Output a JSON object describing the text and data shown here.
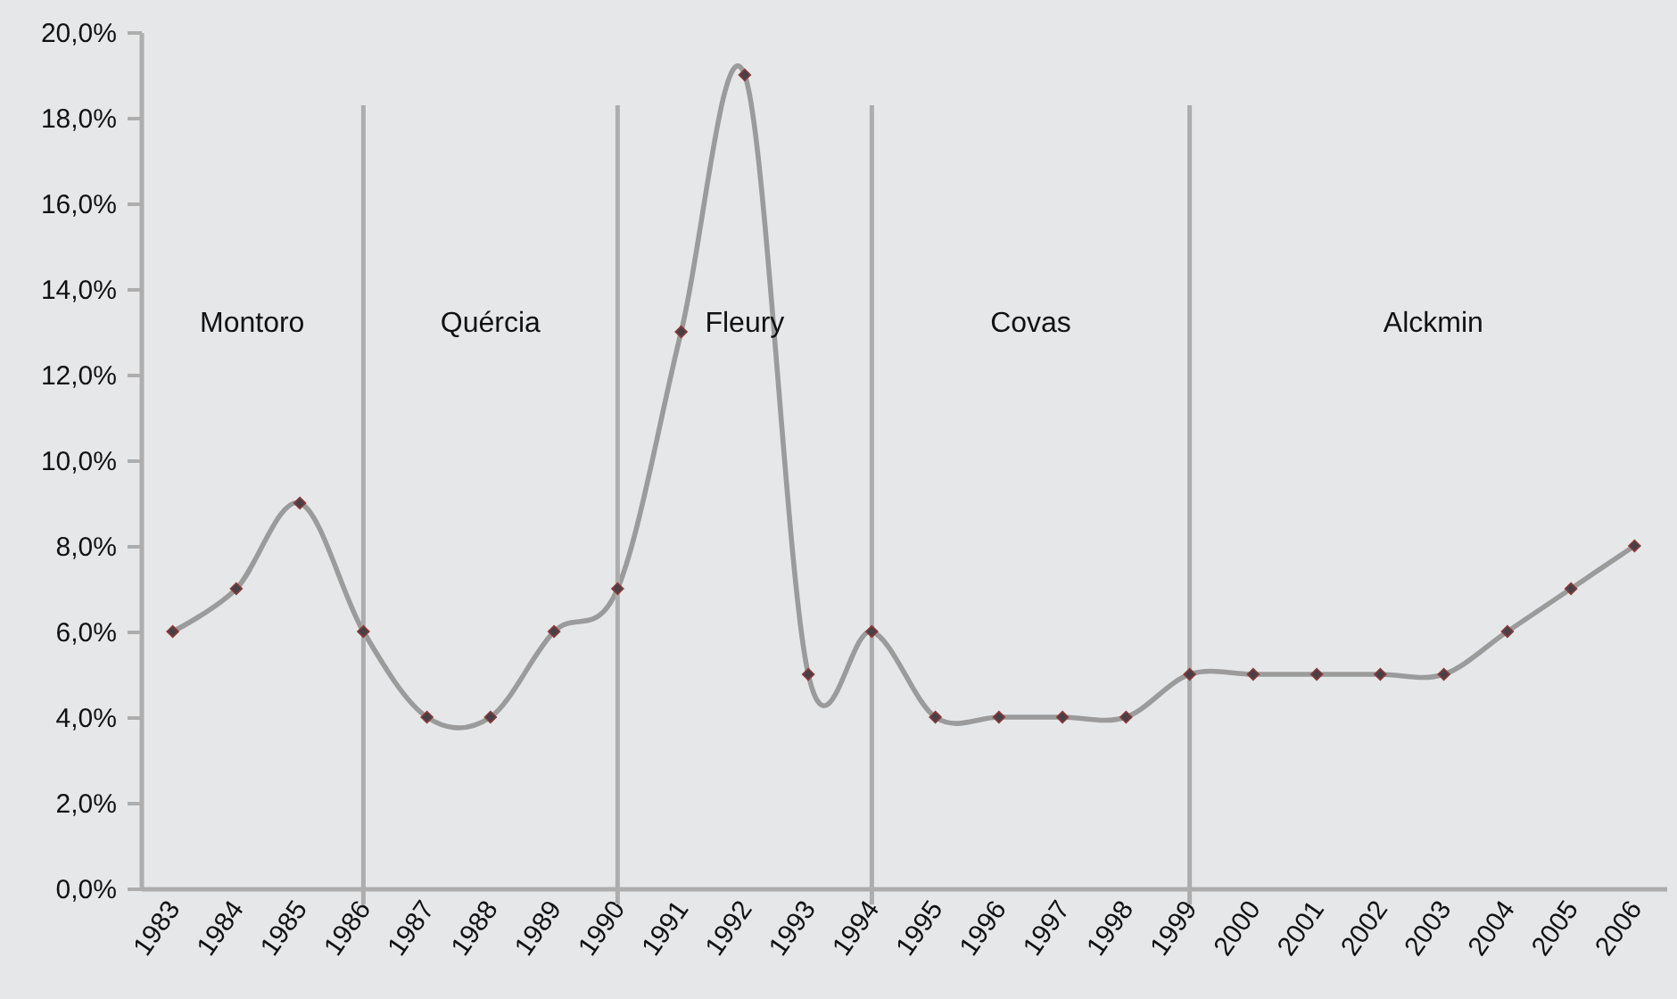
{
  "chart_data": {
    "type": "line",
    "categories": [
      "1983",
      "1984",
      "1985",
      "1986",
      "1987",
      "1988",
      "1989",
      "1990",
      "1991",
      "1992",
      "1993",
      "1994",
      "1995",
      "1996",
      "1997",
      "1998",
      "1999",
      "2000",
      "2001",
      "2002",
      "2003",
      "2004",
      "2005",
      "2006"
    ],
    "series": [
      {
        "color": "#9b9b9b",
        "values": [
          6,
          7,
          9,
          6,
          4,
          4,
          6,
          7,
          13,
          19,
          5,
          6,
          4,
          4,
          4,
          4,
          5,
          5,
          5,
          5,
          5,
          6,
          7,
          8
        ]
      }
    ],
    "ylim": [
      0,
      20
    ],
    "yticks": [
      {
        "value": 0,
        "label": "0,0%"
      },
      {
        "value": 2,
        "label": "2,0%"
      },
      {
        "value": 4,
        "label": "4,0%"
      },
      {
        "value": 6,
        "label": "6,0%"
      },
      {
        "value": 8,
        "label": "8,0%"
      },
      {
        "value": 10,
        "label": "10,0%"
      },
      {
        "value": 12,
        "label": "12,0%"
      },
      {
        "value": 14,
        "label": "14,0%"
      },
      {
        "value": 16,
        "label": "16,0%"
      },
      {
        "value": 18,
        "label": "18,0%"
      },
      {
        "value": 20,
        "label": "20,0%"
      }
    ],
    "ref_lines": [
      {
        "axis": "x",
        "value": "1986",
        "color": "#adadad"
      },
      {
        "axis": "x",
        "value": "1990",
        "color": "#adadad"
      },
      {
        "axis": "x",
        "value": "1994",
        "color": "#adadad"
      },
      {
        "axis": "x",
        "value": "1999",
        "color": "#adadad"
      }
    ],
    "annotations": [
      "Montoro",
      "Quércia",
      "Fleury",
      "Covas",
      "Alckmin"
    ],
    "marker": "diamond",
    "line_style": "solid"
  }
}
